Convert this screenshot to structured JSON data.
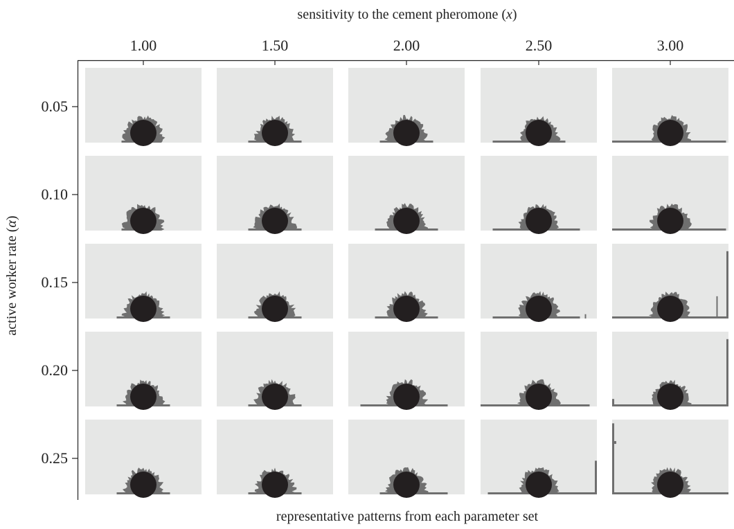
{
  "figure": {
    "top_title_prefix": "sensitivity to the cement pheromone (",
    "top_title_var": "x",
    "top_title_suffix": ")",
    "left_title_prefix": "active worker rate (",
    "left_title_var": "α",
    "left_title_suffix": ")",
    "bottom_caption": "representative patterns from each parameter set",
    "columns": [
      "1.00",
      "1.50",
      "2.00",
      "2.50",
      "3.00"
    ],
    "rows": [
      "0.05",
      "0.10",
      "0.15",
      "0.20",
      "0.25"
    ]
  },
  "colors": {
    "panel_bg": "#e6e7e6",
    "mound": "#6f6f6f",
    "core": "#231f20",
    "axis": "#222222"
  },
  "panels": [
    [
      {
        "floor": [
          -0.45,
          0.15
        ]
      },
      {
        "floor": [
          -0.55,
          0.55
        ]
      },
      {
        "floor": [
          -0.55,
          0.55
        ]
      },
      {
        "floor": [
          -0.95,
          0.55
        ]
      },
      {
        "floor": [
          -1.25,
          1.15
        ]
      }
    ],
    [
      {
        "floor": [
          -0.45,
          0.15
        ]
      },
      {
        "floor": [
          -0.55,
          0.55
        ]
      },
      {
        "floor": [
          -0.65,
          0.65
        ]
      },
      {
        "floor": [
          -0.95,
          0.85
        ]
      },
      {
        "floor": [
          -1.45,
          1.15
        ]
      }
    ],
    [
      {
        "floor": [
          -0.55,
          0.55
        ]
      },
      {
        "floor": [
          -0.55,
          0.55
        ]
      },
      {
        "floor": [
          -0.65,
          0.65
        ]
      },
      {
        "floor": [
          -0.95,
          0.85
        ],
        "stub": 0.05
      },
      {
        "floor": [
          -1.55,
          1.55
        ],
        "wall_right": 0.9,
        "stub": 0.45
      }
    ],
    [
      {
        "floor": [
          -0.55,
          0.55
        ]
      },
      {
        "floor": [
          -0.55,
          0.55
        ]
      },
      {
        "floor": [
          -0.95,
          0.85
        ]
      },
      {
        "floor": [
          -1.55,
          1.05
        ]
      },
      {
        "floor": [
          -1.55,
          1.55
        ],
        "wall_right": 0.9,
        "wall_left": 0.1
      }
    ],
    [
      {
        "floor": [
          -0.55,
          0.55
        ]
      },
      {
        "floor": [
          -0.55,
          0.55
        ]
      },
      {
        "floor": [
          -0.55,
          0.85
        ]
      },
      {
        "floor": [
          -1.05,
          1.55
        ],
        "wall_right": 0.45
      },
      {
        "floor": [
          -1.55,
          1.55
        ],
        "wall_left": 0.95,
        "wall_left_stub": 0.25
      }
    ]
  ]
}
